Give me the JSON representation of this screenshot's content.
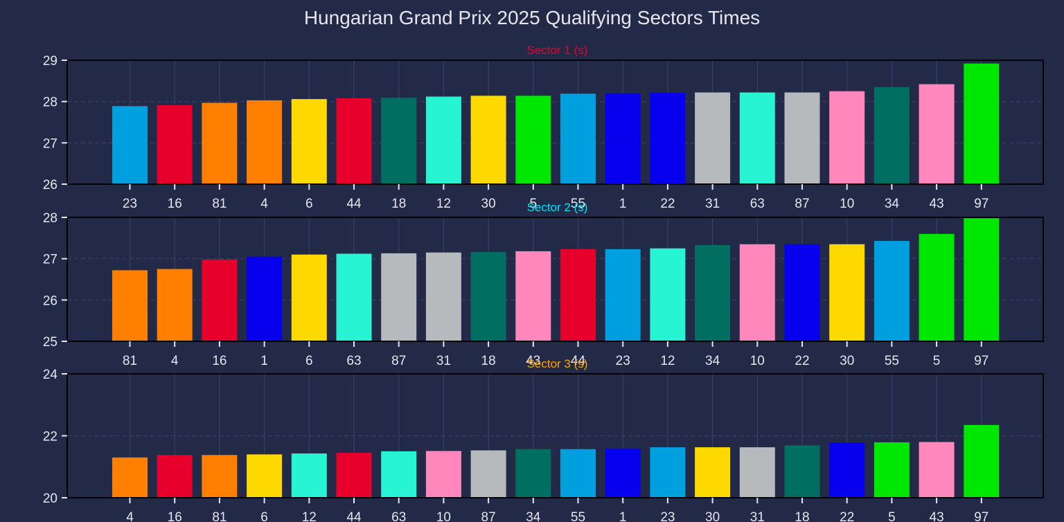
{
  "figure": {
    "title": "Hungarian Grand Prix 2025 Qualifying Sectors Times",
    "background": "#232a47"
  },
  "team_colors": {
    "mclaren": "#ff8000",
    "ferrari": "#e8002d",
    "red_bull": "#0600ef",
    "mercedes": "#27f4d2",
    "aston_martin": "#006f62",
    "racing_bulls": "#fdd900",
    "williams": "#00a0de",
    "haas": "#b6babd",
    "alpine": "#ff87bc",
    "sauber": "#00e701"
  },
  "chart_data": [
    {
      "type": "bar",
      "title": "Sector 1 (s)",
      "title_color": "#e8002d",
      "ylim": [
        26,
        29
      ],
      "yticks": [
        26,
        27,
        28,
        29
      ],
      "grid": true,
      "categories": [
        "23",
        "16",
        "81",
        "4",
        "6",
        "44",
        "18",
        "12",
        "30",
        "5",
        "55",
        "1",
        "22",
        "31",
        "63",
        "87",
        "10",
        "34",
        "43",
        "97"
      ],
      "values": [
        27.89,
        27.91,
        27.97,
        28.03,
        28.06,
        28.08,
        28.09,
        28.12,
        28.14,
        28.14,
        28.19,
        28.2,
        28.21,
        28.22,
        28.22,
        28.22,
        28.25,
        28.35,
        28.42,
        28.92
      ],
      "colors": [
        "#00a0de",
        "#e8002d",
        "#ff8000",
        "#ff8000",
        "#fdd900",
        "#e8002d",
        "#006f62",
        "#27f4d2",
        "#fdd900",
        "#00e701",
        "#00a0de",
        "#0600ef",
        "#0600ef",
        "#b6babd",
        "#27f4d2",
        "#b6babd",
        "#ff87bc",
        "#006f62",
        "#ff87bc",
        "#00e701"
      ]
    },
    {
      "type": "bar",
      "title": "Sector 2 (s)",
      "title_color": "#00e5ff",
      "ylim": [
        25,
        28
      ],
      "yticks": [
        25,
        26,
        27,
        28
      ],
      "grid": true,
      "categories": [
        "81",
        "4",
        "16",
        "1",
        "6",
        "63",
        "87",
        "31",
        "18",
        "43",
        "44",
        "23",
        "12",
        "34",
        "10",
        "22",
        "30",
        "55",
        "5",
        "97"
      ],
      "values": [
        26.72,
        26.75,
        26.98,
        27.05,
        27.1,
        27.12,
        27.13,
        27.15,
        27.16,
        27.18,
        27.23,
        27.23,
        27.25,
        27.33,
        27.35,
        27.35,
        27.35,
        27.43,
        27.6,
        27.98
      ],
      "colors": [
        "#ff8000",
        "#ff8000",
        "#e8002d",
        "#0600ef",
        "#fdd900",
        "#27f4d2",
        "#b6babd",
        "#b6babd",
        "#006f62",
        "#ff87bc",
        "#e8002d",
        "#00a0de",
        "#27f4d2",
        "#006f62",
        "#ff87bc",
        "#0600ef",
        "#fdd900",
        "#00a0de",
        "#00e701",
        "#00e701"
      ]
    },
    {
      "type": "bar",
      "title": "Sector 3 (s)",
      "title_color": "#ffa500",
      "ylim": [
        20,
        24
      ],
      "yticks": [
        20,
        22,
        24
      ],
      "grid": true,
      "categories": [
        "4",
        "16",
        "81",
        "6",
        "12",
        "44",
        "63",
        "10",
        "87",
        "34",
        "55",
        "1",
        "23",
        "30",
        "31",
        "18",
        "22",
        "5",
        "43",
        "97"
      ],
      "values": [
        21.3,
        21.38,
        21.38,
        21.4,
        21.43,
        21.45,
        21.5,
        21.51,
        21.53,
        21.57,
        21.57,
        21.58,
        21.63,
        21.63,
        21.63,
        21.69,
        21.78,
        21.79,
        21.8,
        22.35
      ],
      "colors": [
        "#ff8000",
        "#e8002d",
        "#ff8000",
        "#fdd900",
        "#27f4d2",
        "#e8002d",
        "#27f4d2",
        "#ff87bc",
        "#b6babd",
        "#006f62",
        "#00a0de",
        "#0600ef",
        "#00a0de",
        "#fdd900",
        "#b6babd",
        "#006f62",
        "#0600ef",
        "#00e701",
        "#ff87bc",
        "#00e701"
      ]
    }
  ]
}
